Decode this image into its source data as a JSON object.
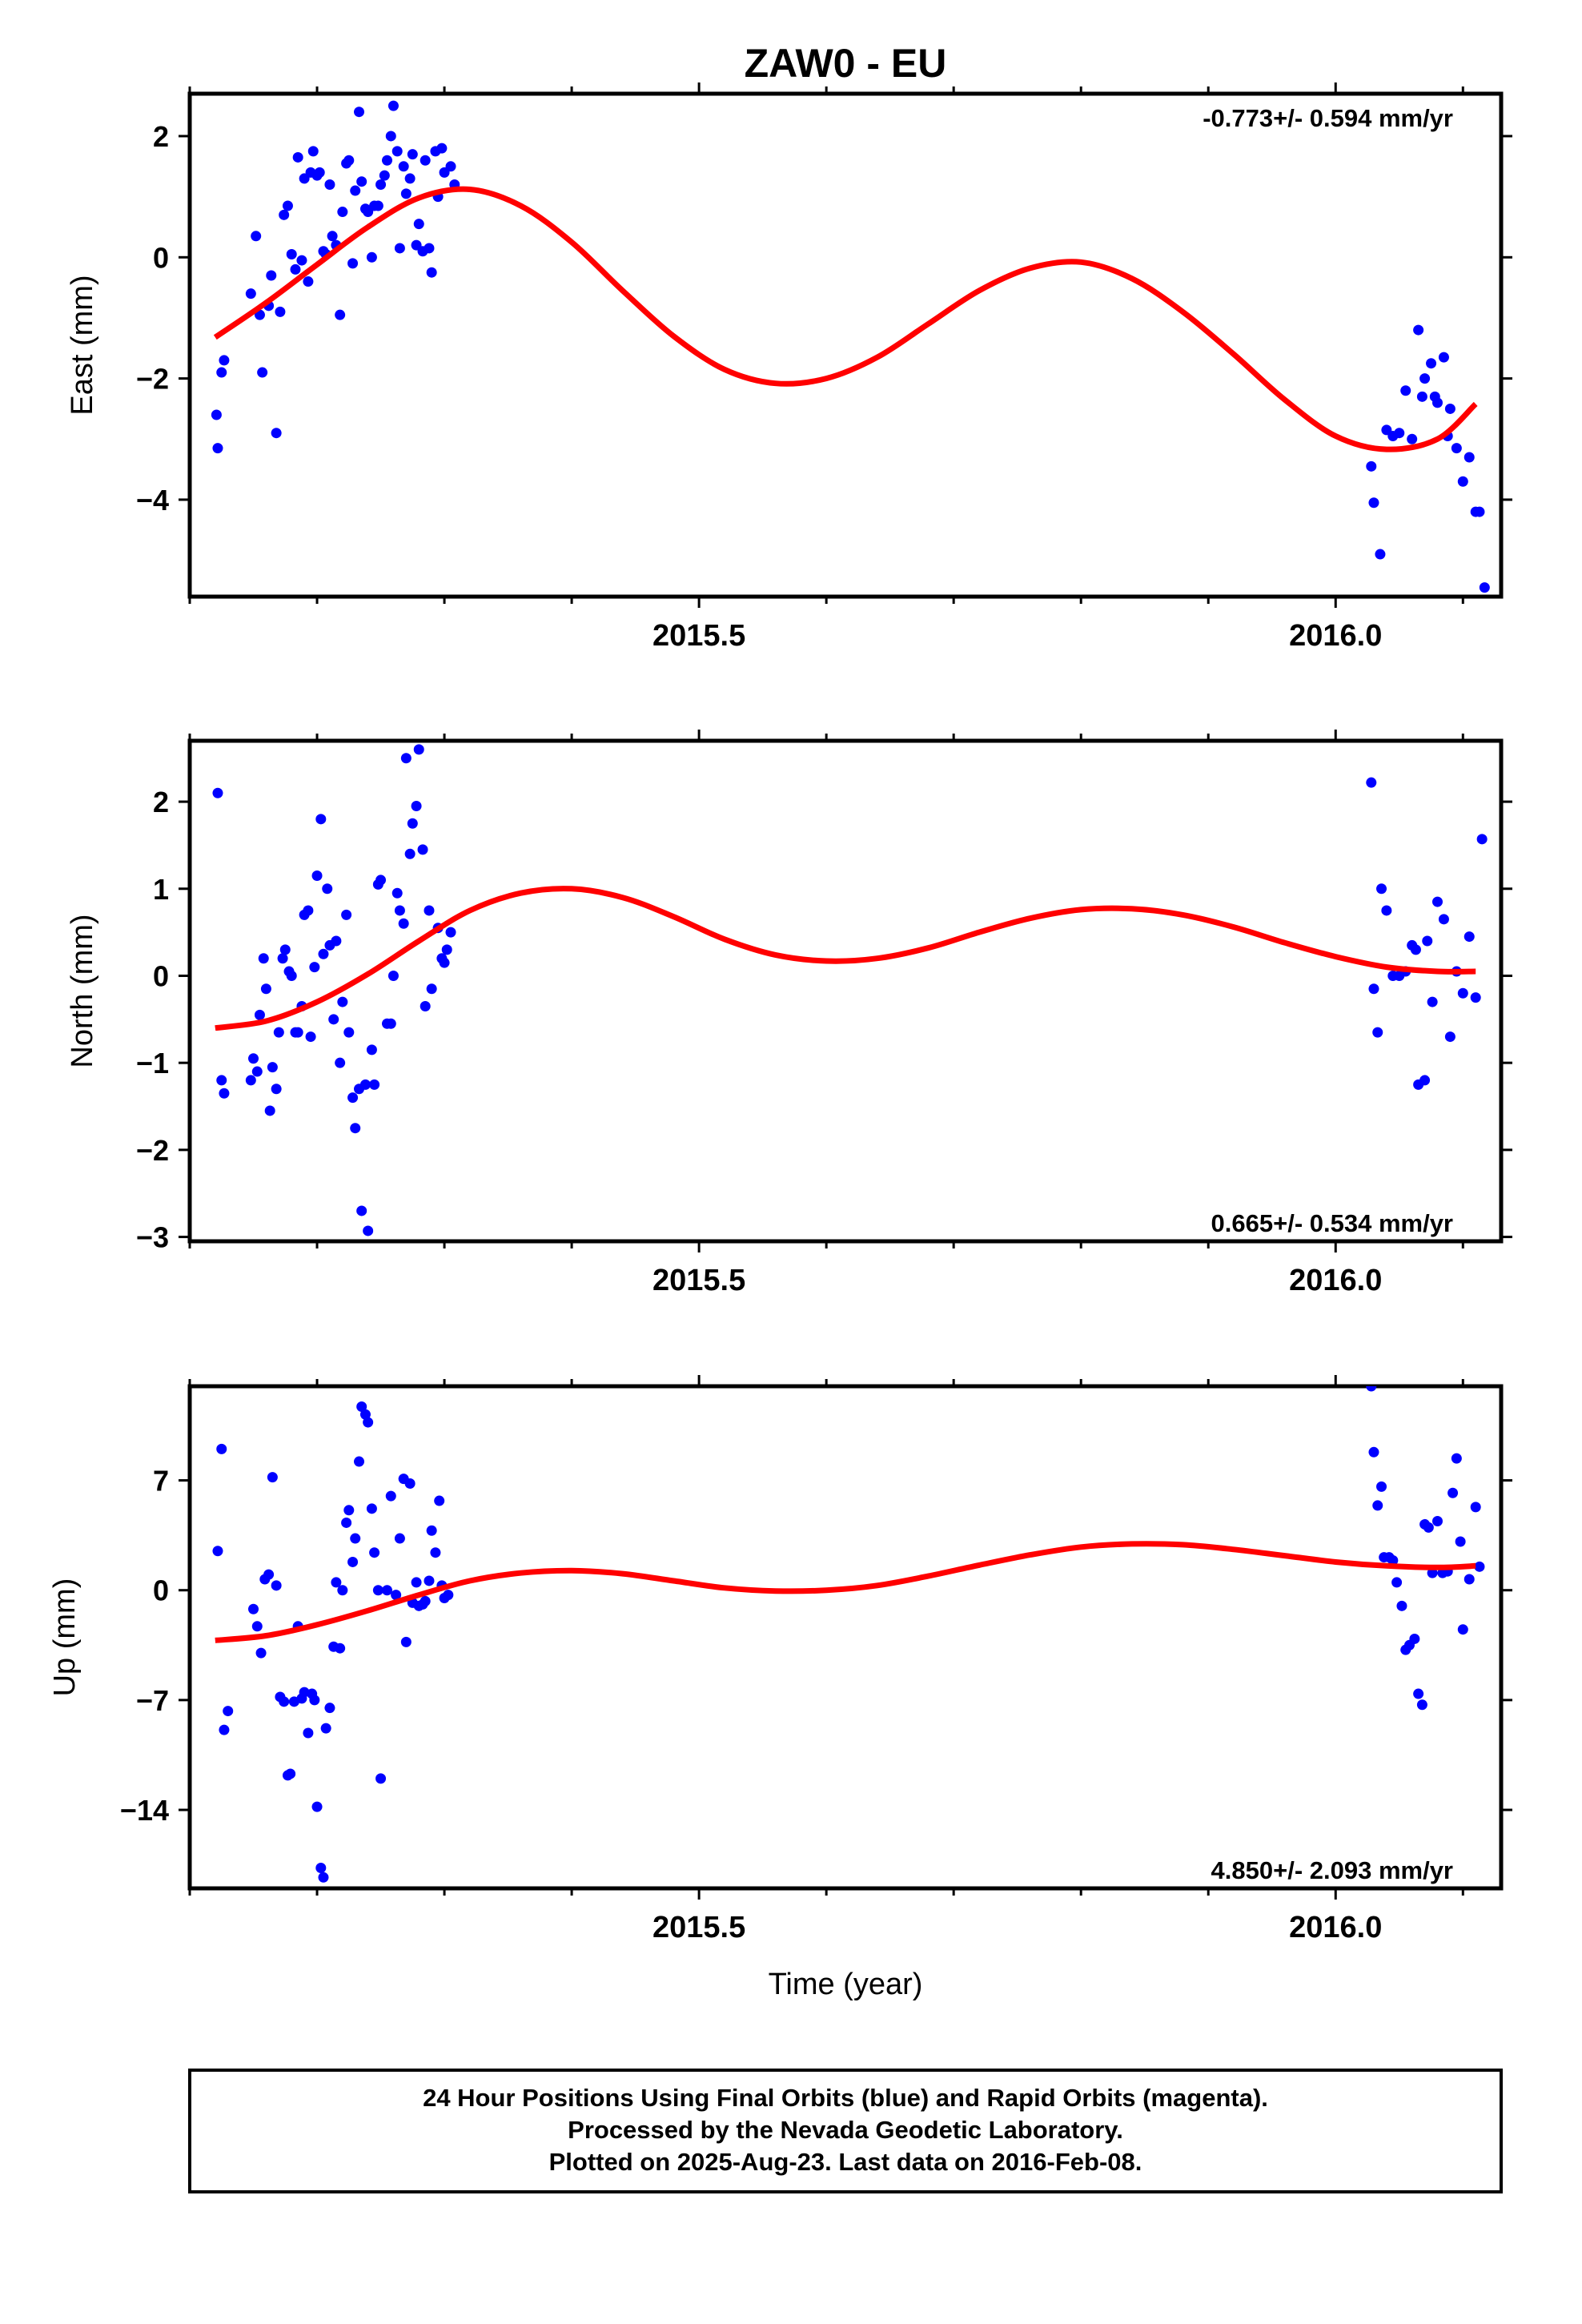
{
  "title": "ZAW0 - EU",
  "xlabel": "Time (year)",
  "footer": [
    "24 Hour Positions Using Final Orbits (blue) and Rapid Orbits (magenta).",
    "Processed by the Nevada Geodetic Laboratory.",
    "Plotted on 2025-Aug-23. Last data on 2016-Feb-08."
  ],
  "colors": {
    "data": "#0000ff",
    "fit": "#ff0000",
    "axis": "#000000",
    "background": "#ffffff"
  },
  "chart_data": [
    {
      "type": "scatter",
      "ylabel": "East (mm)",
      "rate": "-0.773+/- 0.594 mm/yr",
      "xlim": [
        2015.1,
        2016.13
      ],
      "ylim": [
        -5.6,
        2.7
      ],
      "yticks": [
        2,
        0,
        -2,
        -4
      ],
      "ytick_labels": [
        "2",
        "0",
        "−2",
        "−4"
      ],
      "xticks": [
        2015.5,
        2016.0
      ],
      "xtick_labels": [
        "2015.5",
        "2016.0"
      ],
      "series": [
        {
          "kind": "points",
          "x": [
            2015.121,
            2015.122,
            2015.125,
            2015.127,
            2015.148,
            2015.152,
            2015.155,
            2015.157,
            2015.162,
            2015.164,
            2015.168,
            2015.171,
            2015.174,
            2015.177,
            2015.18,
            2015.183,
            2015.185,
            2015.188,
            2015.19,
            2015.193,
            2015.195,
            2015.197,
            2015.2,
            2015.202,
            2015.205,
            2015.207,
            2015.21,
            2015.212,
            2015.215,
            2015.218,
            2015.22,
            2015.223,
            2015.225,
            2015.228,
            2015.23,
            2015.233,
            2015.235,
            2015.238,
            2015.24,
            2015.243,
            2015.245,
            2015.248,
            2015.25,
            2015.253,
            2015.255,
            2015.258,
            2015.26,
            2015.263,
            2015.265,
            2015.268,
            2015.27,
            2015.273,
            2015.275,
            2015.278,
            2015.28,
            2015.283,
            2015.285,
            2015.288,
            2015.29,
            2015.293,
            2015.295,
            2015.298,
            2015.3,
            2015.305,
            2015.308,
            2016.028,
            2016.03,
            2016.035,
            2016.04,
            2016.045,
            2016.05,
            2016.055,
            2016.06,
            2016.065,
            2016.068,
            2016.07,
            2016.075,
            2016.078,
            2016.08,
            2016.085,
            2016.088,
            2016.09,
            2016.095,
            2016.1,
            2016.105,
            2016.11,
            2016.113,
            2016.117
          ],
          "y": [
            -2.6,
            -3.15,
            -1.9,
            -1.7,
            -0.6,
            0.35,
            -0.95,
            -1.9,
            -0.8,
            -0.3,
            -2.9,
            -0.9,
            0.7,
            0.85,
            0.05,
            -0.2,
            1.65,
            -0.05,
            1.3,
            -0.4,
            1.4,
            1.75,
            1.35,
            1.4,
            0.1,
            0.05,
            1.2,
            0.35,
            0.2,
            -0.95,
            0.75,
            1.55,
            1.6,
            -0.1,
            1.1,
            2.4,
            1.25,
            0.8,
            0.75,
            0.0,
            0.85,
            0.85,
            1.2,
            1.35,
            1.6,
            2.0,
            2.5,
            1.75,
            0.15,
            1.5,
            1.05,
            1.3,
            1.7,
            0.2,
            0.55,
            0.1,
            1.6,
            0.15,
            -0.25,
            1.75,
            1.0,
            1.8,
            1.4,
            1.5,
            1.2,
            -3.45,
            -4.05,
            -4.9,
            -2.85,
            -2.95,
            -2.9,
            -2.2,
            -3.0,
            -1.2,
            -2.3,
            -2.0,
            -1.75,
            -2.3,
            -2.4,
            -1.65,
            -2.95,
            -2.5,
            -3.15,
            -3.7,
            -3.3,
            -4.2,
            -4.2,
            -5.45
          ]
        },
        {
          "kind": "fit",
          "x": [
            2015.12,
            2015.16,
            2015.2,
            2015.24,
            2015.28,
            2015.32,
            2015.36,
            2015.4,
            2015.44,
            2015.48,
            2015.52,
            2015.56,
            2015.6,
            2015.64,
            2015.68,
            2015.72,
            2015.76,
            2015.8,
            2015.84,
            2015.88,
            2015.92,
            2015.96,
            2016.0,
            2016.04,
            2016.08,
            2016.11
          ],
          "y": [
            -1.32,
            -0.75,
            -0.12,
            0.5,
            0.98,
            1.12,
            0.85,
            0.25,
            -0.55,
            -1.3,
            -1.85,
            -2.08,
            -2.0,
            -1.65,
            -1.1,
            -0.55,
            -0.18,
            -0.08,
            -0.35,
            -0.9,
            -1.6,
            -2.35,
            -2.95,
            -3.17,
            -3.0,
            -2.42
          ]
        }
      ]
    },
    {
      "type": "scatter",
      "ylabel": "North (mm)",
      "rate": "0.665+/- 0.534 mm/yr",
      "xlim": [
        2015.1,
        2016.13
      ],
      "ylim": [
        -3.05,
        2.7
      ],
      "yticks": [
        2,
        1,
        0,
        -1,
        -2,
        -3
      ],
      "ytick_labels": [
        "2",
        "1",
        "0",
        "−1",
        "−2",
        "−3"
      ],
      "xticks": [
        2015.5,
        2016.0
      ],
      "xtick_labels": [
        "2015.5",
        "2016.0"
      ],
      "series": [
        {
          "kind": "points",
          "x": [
            2015.122,
            2015.125,
            2015.127,
            2015.148,
            2015.15,
            2015.153,
            2015.155,
            2015.158,
            2015.16,
            2015.163,
            2015.165,
            2015.168,
            2015.17,
            2015.173,
            2015.175,
            2015.178,
            2015.18,
            2015.183,
            2015.185,
            2015.188,
            2015.19,
            2015.193,
            2015.195,
            2015.198,
            2015.2,
            2015.203,
            2015.205,
            2015.208,
            2015.21,
            2015.213,
            2015.215,
            2015.218,
            2015.22,
            2015.223,
            2015.225,
            2015.228,
            2015.23,
            2015.233,
            2015.235,
            2015.238,
            2015.24,
            2015.243,
            2015.245,
            2015.248,
            2015.25,
            2015.255,
            2015.258,
            2015.26,
            2015.263,
            2015.265,
            2015.268,
            2015.27,
            2015.273,
            2015.275,
            2015.278,
            2015.28,
            2015.283,
            2015.285,
            2015.288,
            2015.29,
            2015.295,
            2015.298,
            2015.3,
            2015.302,
            2015.305,
            2016.028,
            2016.03,
            2016.033,
            2016.036,
            2016.04,
            2016.045,
            2016.05,
            2016.055,
            2016.06,
            2016.063,
            2016.065,
            2016.07,
            2016.072,
            2016.076,
            2016.08,
            2016.085,
            2016.09,
            2016.095,
            2016.1,
            2016.105,
            2016.11,
            2016.115
          ],
          "y": [
            2.1,
            -1.2,
            -1.35,
            -1.2,
            -0.95,
            -1.1,
            -0.45,
            0.2,
            -0.15,
            -1.55,
            -1.05,
            -1.3,
            -0.65,
            0.2,
            0.3,
            0.05,
            0.0,
            -0.65,
            -0.65,
            -0.35,
            0.7,
            0.75,
            -0.7,
            0.1,
            1.15,
            1.8,
            0.25,
            1.0,
            0.35,
            -0.5,
            0.4,
            -1.0,
            -0.3,
            0.7,
            -0.65,
            -1.4,
            -1.75,
            -1.3,
            -2.7,
            -1.25,
            -2.93,
            -0.85,
            -1.25,
            1.05,
            1.1,
            -0.55,
            -0.55,
            0.0,
            0.95,
            0.75,
            0.6,
            2.5,
            1.4,
            1.75,
            1.95,
            2.6,
            1.45,
            -0.35,
            0.75,
            -0.15,
            0.55,
            0.2,
            0.15,
            0.3,
            0.5,
            2.22,
            -0.15,
            -0.65,
            1.0,
            0.75,
            0.0,
            0.0,
            0.05,
            0.35,
            0.3,
            -1.25,
            -1.2,
            0.4,
            -0.3,
            0.85,
            0.65,
            -0.7,
            0.05,
            -0.2,
            0.45,
            -0.25,
            1.57
          ]
        },
        {
          "kind": "fit",
          "x": [
            2015.12,
            2015.16,
            2015.2,
            2015.24,
            2015.28,
            2015.32,
            2015.36,
            2015.4,
            2015.44,
            2015.48,
            2015.52,
            2015.56,
            2015.6,
            2015.64,
            2015.68,
            2015.72,
            2015.76,
            2015.8,
            2015.84,
            2015.88,
            2015.92,
            2015.96,
            2016.0,
            2016.04,
            2016.08,
            2016.11
          ],
          "y": [
            -0.6,
            -0.52,
            -0.3,
            0.02,
            0.4,
            0.75,
            0.95,
            1.0,
            0.9,
            0.68,
            0.42,
            0.24,
            0.17,
            0.2,
            0.32,
            0.5,
            0.66,
            0.76,
            0.77,
            0.7,
            0.56,
            0.38,
            0.22,
            0.1,
            0.05,
            0.05
          ]
        }
      ]
    },
    {
      "type": "scatter",
      "ylabel": "Up (mm)",
      "rate": "4.850+/- 2.093 mm/yr",
      "xlim": [
        2015.1,
        2016.13
      ],
      "ylim": [
        -19,
        13
      ],
      "yticks": [
        7,
        0,
        -7,
        -14
      ],
      "ytick_labels": [
        "7",
        "0",
        "−7",
        "−14"
      ],
      "xticks": [
        2015.5,
        2016.0
      ],
      "xtick_labels": [
        "2015.5",
        "2016.0"
      ],
      "series": [
        {
          "kind": "points",
          "x": [
            2015.122,
            2015.125,
            2015.127,
            2015.13,
            2015.15,
            2015.153,
            2015.156,
            2015.159,
            2015.162,
            2015.165,
            2015.168,
            2015.171,
            2015.174,
            2015.177,
            2015.179,
            2015.182,
            2015.185,
            2015.188,
            2015.19,
            2015.193,
            2015.196,
            2015.198,
            2015.2,
            2015.203,
            2015.205,
            2015.207,
            2015.21,
            2015.213,
            2015.215,
            2015.218,
            2015.22,
            2015.223,
            2015.225,
            2015.228,
            2015.23,
            2015.233,
            2015.235,
            2015.238,
            2015.24,
            2015.243,
            2015.245,
            2015.248,
            2015.25,
            2015.255,
            2015.258,
            2015.262,
            2015.265,
            2015.268,
            2015.27,
            2015.273,
            2015.275,
            2015.278,
            2015.28,
            2015.283,
            2015.285,
            2015.288,
            2015.29,
            2015.293,
            2015.296,
            2015.298,
            2015.3,
            2015.303,
            2016.028,
            2016.03,
            2016.033,
            2016.036,
            2016.038,
            2016.042,
            2016.045,
            2016.048,
            2016.052,
            2016.055,
            2016.058,
            2016.062,
            2016.065,
            2016.068,
            2016.07,
            2016.073,
            2016.076,
            2016.08,
            2016.084,
            2016.088,
            2016.092,
            2016.095,
            2016.098,
            2016.1,
            2016.105,
            2016.11,
            2016.113
          ],
          "y": [
            2.5,
            9.0,
            -8.9,
            -7.7,
            -1.2,
            -2.3,
            -4.0,
            0.7,
            1.0,
            7.2,
            0.3,
            -6.8,
            -7.1,
            -11.8,
            -11.7,
            -7.1,
            -2.3,
            -6.9,
            -6.5,
            -9.1,
            -6.6,
            -7.0,
            -13.8,
            -17.7,
            -18.3,
            -8.8,
            -7.5,
            -3.6,
            0.5,
            -3.7,
            0.0,
            4.3,
            5.1,
            1.8,
            3.3,
            8.2,
            11.7,
            11.2,
            10.7,
            5.2,
            2.4,
            0.0,
            -12.0,
            0.0,
            6.0,
            -0.3,
            3.3,
            7.1,
            -3.3,
            6.8,
            -0.8,
            0.5,
            -1.0,
            -0.9,
            -0.7,
            0.6,
            3.8,
            2.4,
            5.7,
            0.3,
            -0.5,
            -0.3,
            13.0,
            8.8,
            5.4,
            6.6,
            2.1,
            2.1,
            1.9,
            0.5,
            -1.0,
            -3.8,
            -3.5,
            -3.1,
            -6.6,
            -7.3,
            4.2,
            4.0,
            1.1,
            4.4,
            1.1,
            1.2,
            6.2,
            8.4,
            3.1,
            -2.5,
            0.7,
            5.3,
            1.5
          ]
        },
        {
          "kind": "fit",
          "x": [
            2015.12,
            2015.16,
            2015.2,
            2015.24,
            2015.28,
            2015.32,
            2015.36,
            2015.4,
            2015.44,
            2015.48,
            2015.52,
            2015.56,
            2015.6,
            2015.64,
            2015.68,
            2015.72,
            2015.76,
            2015.8,
            2015.84,
            2015.88,
            2015.92,
            2015.96,
            2016.0,
            2016.04,
            2016.08,
            2016.11
          ],
          "y": [
            -3.2,
            -2.9,
            -2.2,
            -1.3,
            -0.3,
            0.6,
            1.1,
            1.25,
            1.05,
            0.6,
            0.15,
            -0.05,
            0.0,
            0.3,
            0.9,
            1.6,
            2.25,
            2.75,
            2.95,
            2.9,
            2.6,
            2.2,
            1.8,
            1.55,
            1.45,
            1.55
          ]
        }
      ]
    }
  ]
}
